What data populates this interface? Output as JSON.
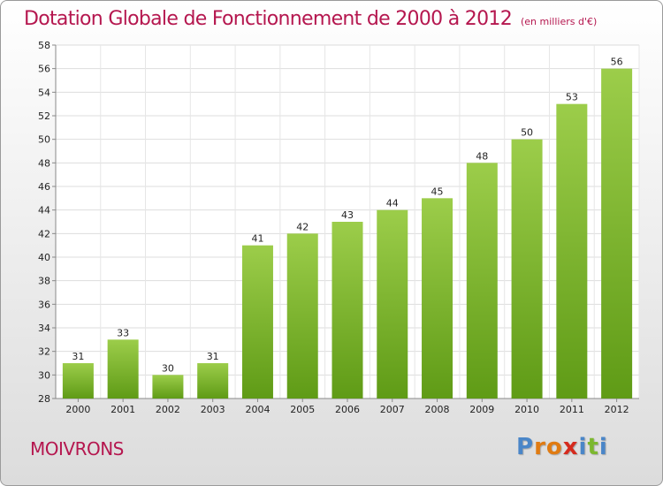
{
  "header": {
    "title": "Dotation Globale de Fonctionnement de 2000 à 2012",
    "unit": "(en milliers d'€)"
  },
  "footer": {
    "commune": "MOIVRONS",
    "logo": [
      "P",
      "r",
      "o",
      "x",
      "i",
      "t",
      "i"
    ]
  },
  "colors": {
    "title": "#b5174f",
    "bar_top": "#9ccd4a",
    "bar_bottom": "#5f9b16",
    "logo": [
      "#4a86c8",
      "#e07b12",
      "#e07b12",
      "#d52b1e",
      "#4a86c8",
      "#7cb82f",
      "#4a86c8"
    ]
  },
  "chart_data": {
    "type": "bar",
    "title": "Dotation Globale de Fonctionnement de 2000 à 2012",
    "subtitle": "(en milliers d'€)",
    "categories": [
      "2000",
      "2001",
      "2002",
      "2003",
      "2004",
      "2005",
      "2006",
      "2007",
      "2008",
      "2009",
      "2010",
      "2011",
      "2012"
    ],
    "values": [
      31,
      33,
      30,
      31,
      41,
      42,
      43,
      44,
      45,
      48,
      50,
      53,
      56
    ],
    "ylim": [
      28,
      58
    ],
    "yticks": [
      28,
      30,
      32,
      34,
      36,
      38,
      40,
      42,
      44,
      46,
      48,
      50,
      52,
      54,
      56,
      58
    ],
    "grid": true,
    "xlabel": "",
    "ylabel": ""
  }
}
